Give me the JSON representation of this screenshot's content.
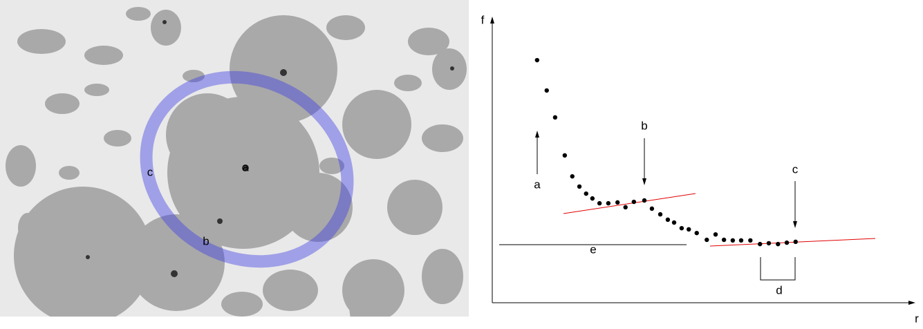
{
  "image": {
    "labels": [
      "a",
      "b",
      "c"
    ]
  },
  "chart_data": {
    "type": "scatter",
    "x_label": "r",
    "y_label": "f",
    "x": [
      10.7,
      13.0,
      15.0,
      17.3,
      19.1,
      20.8,
      22.4,
      23.9,
      25.6,
      27.7,
      29.9,
      31.8,
      33.8,
      36.3,
      38.1,
      40.1,
      41.9,
      43.4,
      45.2,
      46.9,
      48.8,
      51.2,
      53.3,
      55.3,
      57.4,
      59.4,
      61.6,
      63.9,
      66.0,
      68.2,
      70.3,
      72.4
    ],
    "y": [
      85.6,
      74.9,
      65.4,
      52.0,
      44.6,
      41.0,
      38.5,
      36.8,
      35.1,
      35.1,
      35.4,
      33.7,
      35.6,
      36.1,
      33.2,
      31.2,
      29.3,
      28.3,
      26.3,
      25.9,
      24.6,
      22.2,
      24.1,
      22.2,
      22.0,
      22.0,
      22.0,
      20.7,
      21.0,
      20.7,
      21.2,
      21.5
    ],
    "xlim": [
      0,
      100
    ],
    "ylim": [
      0,
      100
    ],
    "color": "#000000",
    "annotations": [
      "a",
      "b",
      "c",
      "d",
      "e"
    ]
  }
}
